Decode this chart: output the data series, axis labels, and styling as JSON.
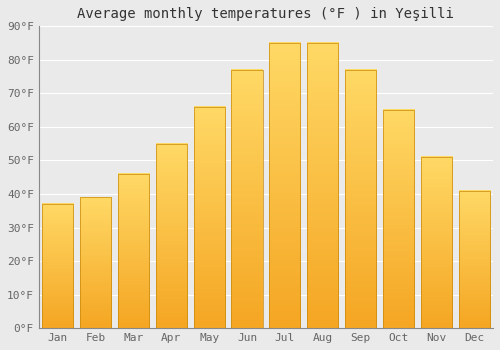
{
  "title": "Average monthly temperatures (°F ) in Yeşilli",
  "months": [
    "Jan",
    "Feb",
    "Mar",
    "Apr",
    "May",
    "Jun",
    "Jul",
    "Aug",
    "Sep",
    "Oct",
    "Nov",
    "Dec"
  ],
  "values": [
    37,
    39,
    46,
    55,
    66,
    77,
    85,
    85,
    77,
    65,
    51,
    41
  ],
  "bar_color_bottom": "#F5A623",
  "bar_color_top": "#FFD966",
  "bar_edge_color": "#C8880A",
  "background_color": "#EAEAEA",
  "grid_color": "#FFFFFF",
  "ylim": [
    0,
    90
  ],
  "yticks": [
    0,
    10,
    20,
    30,
    40,
    50,
    60,
    70,
    80,
    90
  ],
  "title_fontsize": 10,
  "tick_fontsize": 8,
  "font_family": "monospace"
}
